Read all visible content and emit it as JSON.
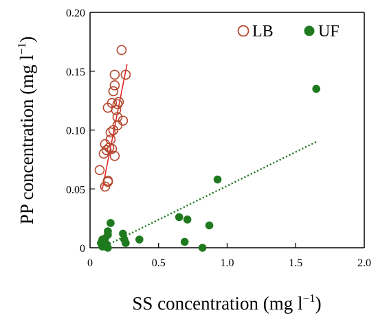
{
  "chart_data": {
    "type": "scatter",
    "title": "",
    "xlabel": "SS concentration (mg l",
    "xlabel_sup": "−1",
    "xlabel_end": ")",
    "ylabel": "PP concentration  (mg l",
    "ylabel_sup": "−1",
    "ylabel_end": ")",
    "xlim": [
      0,
      2.0
    ],
    "ylim": [
      0,
      0.2
    ],
    "xticks": [
      "0",
      "0.5",
      "1.0",
      "1.5",
      "2.0"
    ],
    "yticks": [
      "0",
      "0.05",
      "0.10",
      "0.15",
      "0.20"
    ],
    "grid": false,
    "legend_position": "top-right",
    "series": [
      {
        "name": "LB",
        "marker": "open-circle",
        "color": "#b5452b",
        "points": [
          [
            0.23,
            0.168
          ],
          [
            0.18,
            0.147
          ],
          [
            0.26,
            0.147
          ],
          [
            0.18,
            0.138
          ],
          [
            0.17,
            0.133
          ],
          [
            0.21,
            0.124
          ],
          [
            0.2,
            0.122
          ],
          [
            0.16,
            0.123
          ],
          [
            0.13,
            0.119
          ],
          [
            0.19,
            0.117
          ],
          [
            0.2,
            0.111
          ],
          [
            0.24,
            0.108
          ],
          [
            0.2,
            0.104
          ],
          [
            0.17,
            0.1
          ],
          [
            0.15,
            0.098
          ],
          [
            0.15,
            0.092
          ],
          [
            0.11,
            0.088
          ],
          [
            0.14,
            0.085
          ],
          [
            0.16,
            0.084
          ],
          [
            0.12,
            0.083
          ],
          [
            0.18,
            0.078
          ],
          [
            0.1,
            0.08
          ],
          [
            0.07,
            0.066
          ],
          [
            0.13,
            0.057
          ],
          [
            0.13,
            0.056
          ],
          [
            0.11,
            0.052
          ]
        ],
        "trendline": {
          "style": "solid",
          "color": "#e0282a",
          "from": [
            0.09,
            0.05
          ],
          "to": [
            0.27,
            0.156
          ]
        }
      },
      {
        "name": "UF",
        "marker": "filled-circle",
        "color": "#1f7a1f",
        "points": [
          [
            1.65,
            0.135
          ],
          [
            0.93,
            0.058
          ],
          [
            0.65,
            0.026
          ],
          [
            0.71,
            0.024
          ],
          [
            0.87,
            0.019
          ],
          [
            0.82,
            0.0
          ],
          [
            0.69,
            0.005
          ],
          [
            0.36,
            0.007
          ],
          [
            0.15,
            0.021
          ],
          [
            0.24,
            0.012
          ],
          [
            0.26,
            0.004
          ],
          [
            0.25,
            0.007
          ],
          [
            0.13,
            0.014
          ],
          [
            0.13,
            0.011
          ],
          [
            0.11,
            0.008
          ],
          [
            0.09,
            0.007
          ],
          [
            0.08,
            0.004
          ],
          [
            0.1,
            0.002
          ],
          [
            0.12,
            0.003
          ],
          [
            0.11,
            0.001
          ],
          [
            0.13,
            0.0
          ],
          [
            0.09,
            0.001
          ]
        ],
        "trendline": {
          "style": "dotted",
          "color": "#1f7a1f",
          "from": [
            0.12,
            0.002
          ],
          "to": [
            1.65,
            0.09
          ]
        }
      }
    ]
  }
}
